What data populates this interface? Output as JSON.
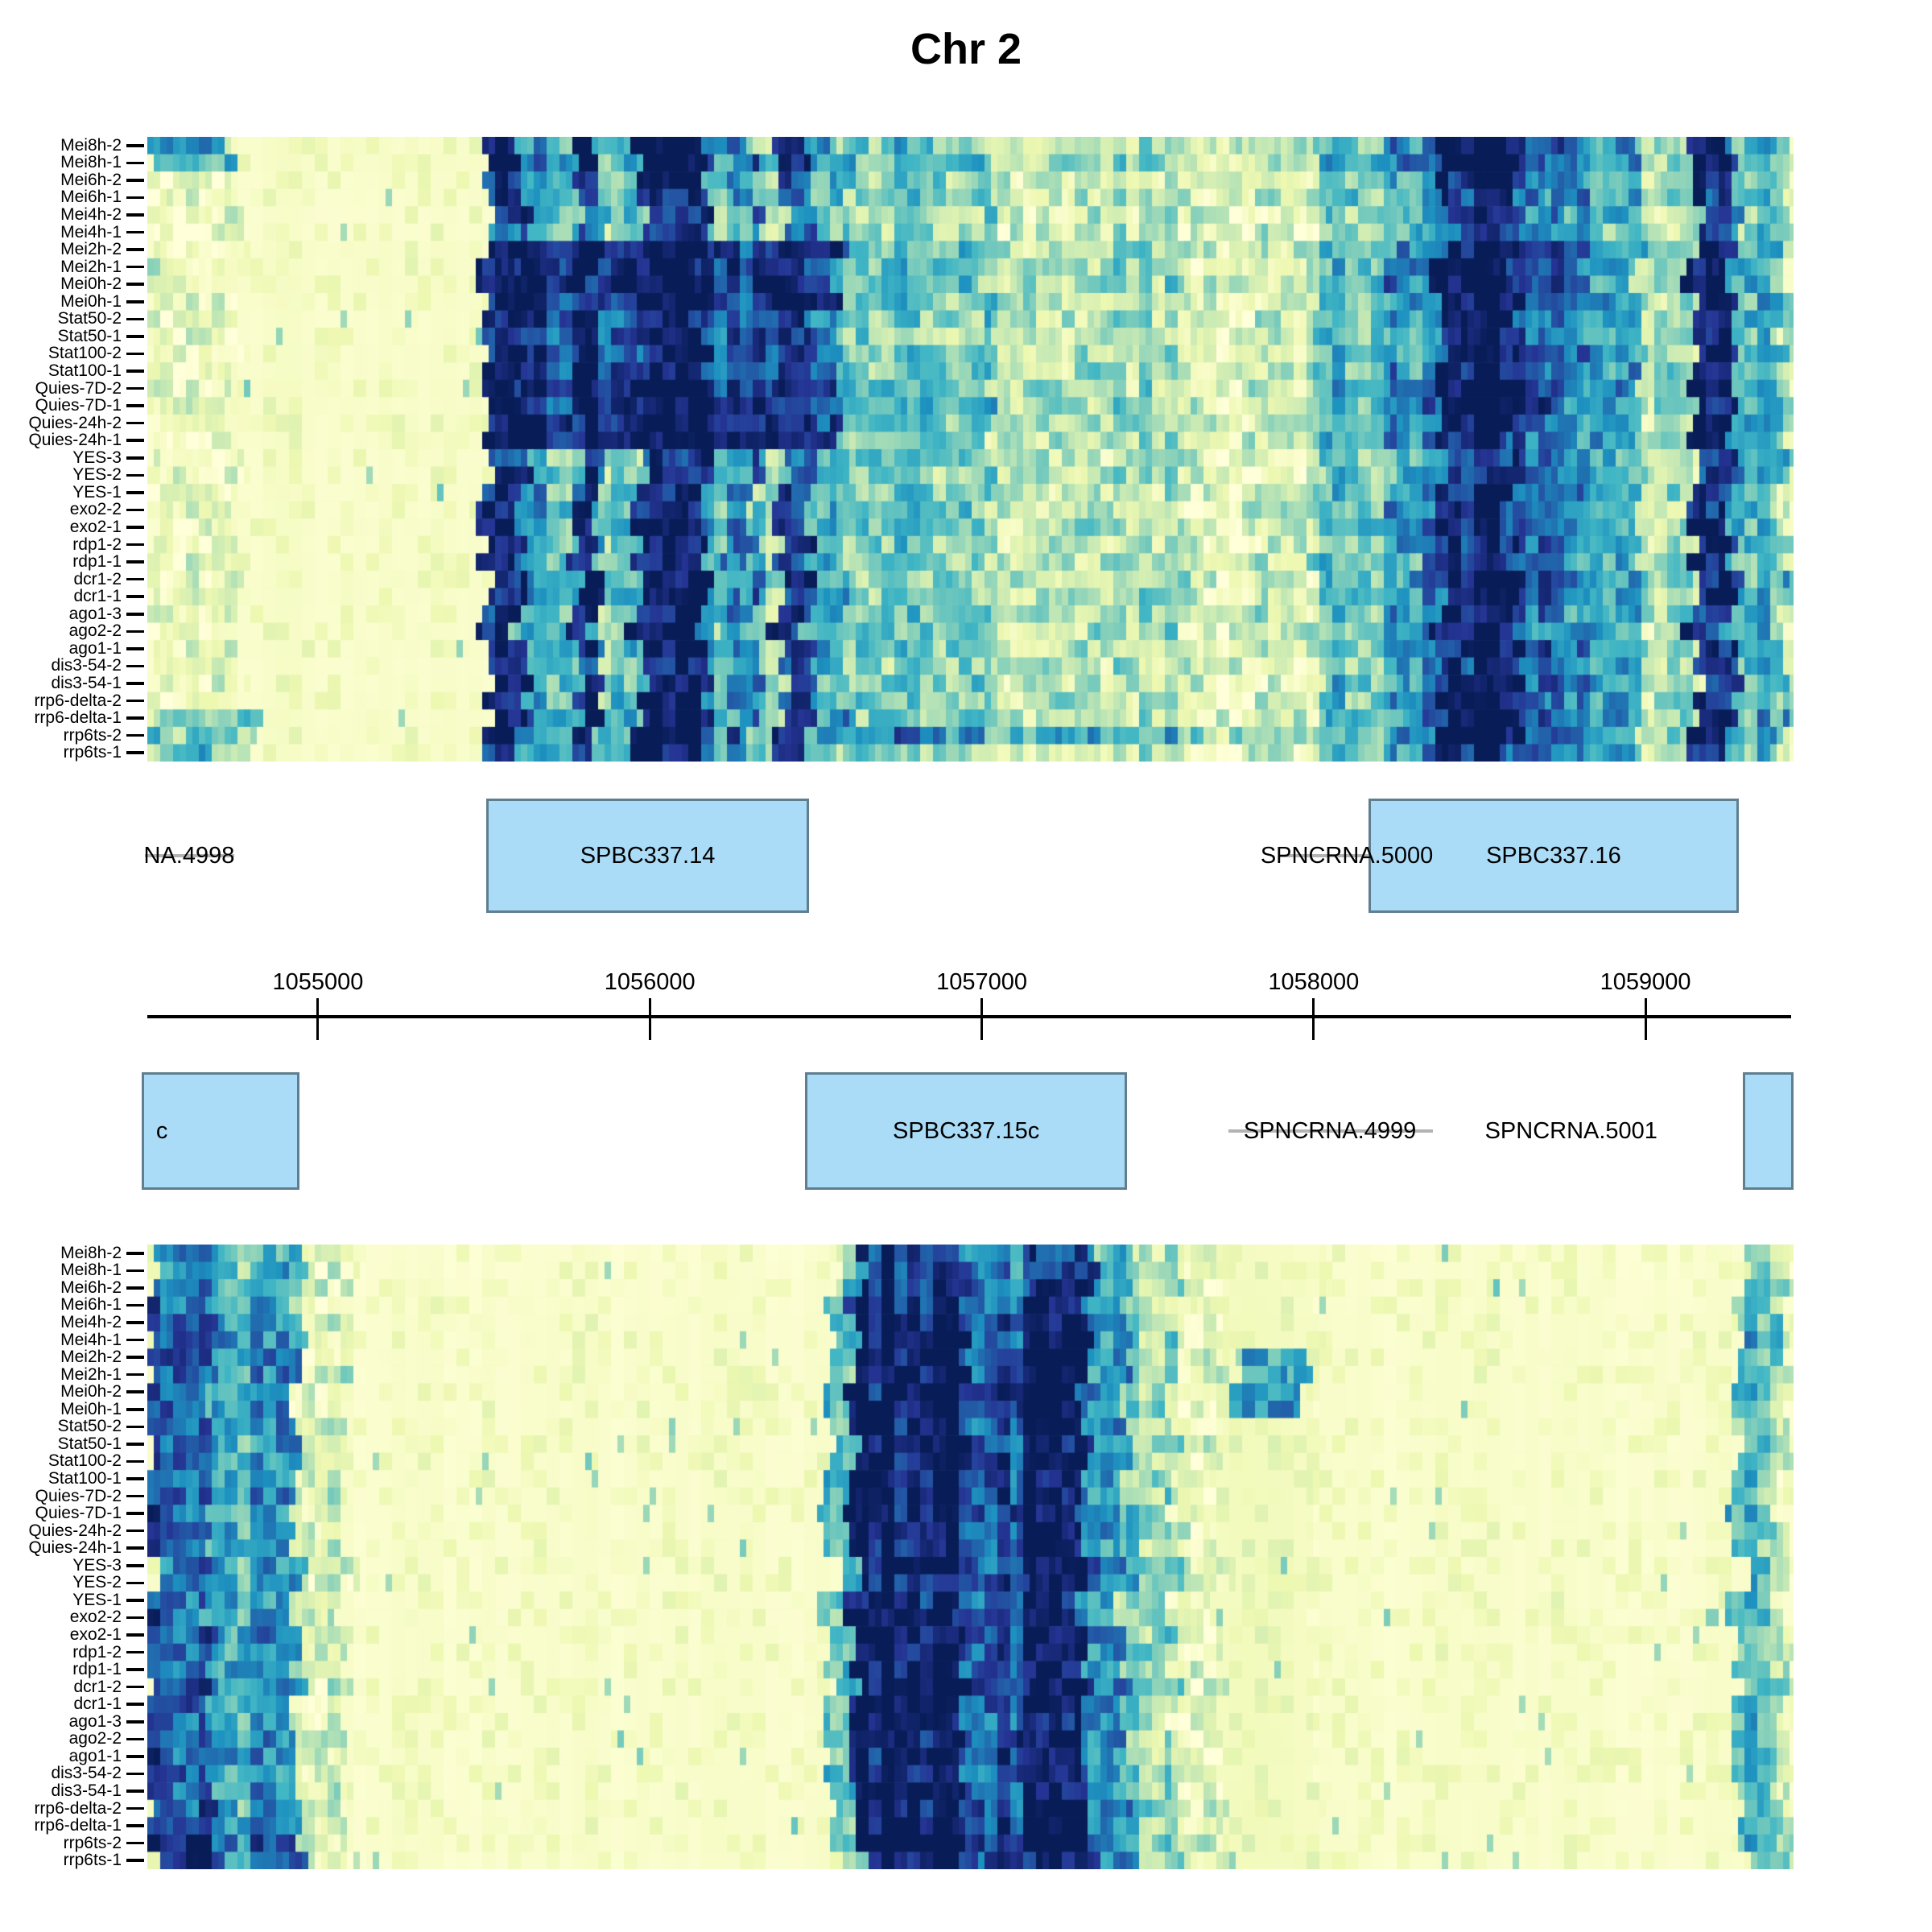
{
  "title": "Chr 2",
  "samples": [
    "Mei8h-2",
    "Mei8h-1",
    "Mei6h-2",
    "Mei6h-1",
    "Mei4h-2",
    "Mei4h-1",
    "Mei2h-2",
    "Mei2h-1",
    "Mei0h-2",
    "Mei0h-1",
    "Stat50-2",
    "Stat50-1",
    "Stat100-2",
    "Stat100-1",
    "Quies-7D-2",
    "Quies-7D-1",
    "Quies-24h-2",
    "Quies-24h-1",
    "YES-3",
    "YES-2",
    "YES-1",
    "exo2-2",
    "exo2-1",
    "rdp1-2",
    "rdp1-1",
    "dcr1-2",
    "dcr1-1",
    "ago1-3",
    "ago2-2",
    "ago1-1",
    "dis3-54-2",
    "dis3-54-1",
    "rrp6-delta-2",
    "rrp6-delta-1",
    "rrp6ts-2",
    "rrp6ts-1"
  ],
  "axis": {
    "domain": [
      1054486,
      1059446
    ],
    "tick_values": [
      1055000,
      1056000,
      1057000,
      1058000,
      1059000
    ],
    "tick_labels": [
      "1055000",
      "1056000",
      "1057000",
      "1058000",
      "1059000"
    ]
  },
  "colors": {
    "gene_box_fill": "#abdcf7",
    "gene_box_border": "#5f7e90",
    "gene_line": "#b3b3b3",
    "axis_color": "#000000",
    "heatmap_palette": [
      "#ffffd9",
      "#edf8b1",
      "#c7e9b4",
      "#7fcdbb",
      "#41b6c4",
      "#1d91c0",
      "#225ea8",
      "#253494",
      "#081d58"
    ]
  },
  "gene_tracks": {
    "top": [
      {
        "label": "NA.4998",
        "glyph": "line",
        "start": 1054479,
        "end": 1054748,
        "label_center": 1054612,
        "strikethrough": true
      },
      {
        "label": "SPBC337.14",
        "glyph": "box",
        "start": 1055507,
        "end": 1056480
      },
      {
        "label": "SPNCRNA.5000",
        "glyph": "line",
        "start": 1057898,
        "end": 1058165,
        "label_center": 1058100,
        "strikethrough": true
      },
      {
        "label": "SPBC337.16",
        "glyph": "box",
        "start": 1058165,
        "end": 1059281
      }
    ],
    "bottom": [
      {
        "label": "c",
        "glyph": "box",
        "start": 1054470,
        "end": 1054944,
        "label_center": 1054530,
        "clipped_left": true
      },
      {
        "label": "SPBC337.15c",
        "glyph": "box",
        "start": 1056468,
        "end": 1057438
      },
      {
        "label": "SPNCRNA.4999",
        "glyph": "line",
        "start": 1057743,
        "end": 1058359,
        "label_center": 1058049,
        "strikethrough": true
      },
      {
        "label": "SPNCRNA.5001",
        "glyph": "label",
        "label_center": 1058776,
        "strikethrough": false
      },
      {
        "label": "",
        "glyph": "box",
        "start": 1059293,
        "end": 1059446,
        "clipped_right": true
      }
    ]
  },
  "chart_data": [
    {
      "type": "heatmap",
      "panel": "upper",
      "x_domain": [
        1054486,
        1059446
      ],
      "value_scale": "0 = no coverage (pale yellow) to 1 = max coverage (dark navy), YlGnBu palette",
      "segments": [
        [
          1054486,
          1054750,
          0.13
        ],
        [
          1054750,
          1055500,
          0.05
        ],
        [
          1055500,
          1055610,
          0.95
        ],
        [
          1055610,
          1055775,
          0.55
        ],
        [
          1055775,
          1055840,
          0.95
        ],
        [
          1055840,
          1055960,
          0.45
        ],
        [
          1055960,
          1056165,
          0.97
        ],
        [
          1056165,
          1056240,
          0.5
        ],
        [
          1056240,
          1056310,
          0.72
        ],
        [
          1056310,
          1056385,
          0.35
        ],
        [
          1056385,
          1056480,
          0.95
        ],
        [
          1056480,
          1056575,
          0.6
        ],
        [
          1056575,
          1057025,
          0.42
        ],
        [
          1057025,
          1057240,
          0.25
        ],
        [
          1057240,
          1057630,
          0.3
        ],
        [
          1057630,
          1057820,
          0.15
        ],
        [
          1057820,
          1058005,
          0.25
        ],
        [
          1058005,
          1058235,
          0.45
        ],
        [
          1058235,
          1058380,
          0.62
        ],
        [
          1058380,
          1058600,
          1.0
        ],
        [
          1058600,
          1058695,
          0.8
        ],
        [
          1058695,
          1058815,
          0.62
        ],
        [
          1058815,
          1058985,
          0.5
        ],
        [
          1058985,
          1059140,
          0.28
        ],
        [
          1059140,
          1059260,
          0.95
        ],
        [
          1059260,
          1059405,
          0.5
        ],
        [
          1059405,
          1059446,
          0.25
        ]
      ],
      "row_weights": [
        1.05,
        1.1,
        0.92,
        0.92,
        0.85,
        0.8,
        1.1,
        1.05,
        1.1,
        1.05,
        0.95,
        0.95,
        1.0,
        1.0,
        1.1,
        1.05,
        1.05,
        1.0,
        0.9,
        0.9,
        0.92,
        0.95,
        1.0,
        0.95,
        0.95,
        1.0,
        1.0,
        0.95,
        0.95,
        1.0,
        0.9,
        0.95,
        1.0,
        1.05,
        1.1,
        0.95
      ],
      "patches": [
        {
          "rows": [
            0,
            1
          ],
          "range": [
            1054500,
            1054740
          ],
          "add": 0.38
        },
        {
          "rows": [
            6,
            9
          ],
          "range": [
            1055500,
            1056570
          ],
          "min": 0.9
        },
        {
          "rows": [
            10,
            13
          ],
          "range": [
            1055500,
            1056570
          ],
          "min": 0.78
        },
        {
          "rows": [
            14,
            17
          ],
          "range": [
            1055500,
            1056570
          ],
          "min": 0.9
        },
        {
          "rows": [
            33,
            35
          ],
          "range": [
            1054486,
            1054800
          ],
          "add": 0.28
        },
        {
          "rows": [
            34,
            34
          ],
          "range": [
            1056575,
            1057820
          ],
          "add": 0.15
        }
      ]
    },
    {
      "type": "heatmap",
      "panel": "lower",
      "x_domain": [
        1054486,
        1059446
      ],
      "value_scale": "0 = no coverage (pale yellow) to 1 = max coverage (dark navy), YlGnBu palette",
      "segments": [
        [
          1054486,
          1054685,
          0.78
        ],
        [
          1054685,
          1054780,
          0.55
        ],
        [
          1054780,
          1054940,
          0.6
        ],
        [
          1054940,
          1055090,
          0.18
        ],
        [
          1055090,
          1056540,
          0.04
        ],
        [
          1056540,
          1056615,
          0.45
        ],
        [
          1056615,
          1056950,
          1.0
        ],
        [
          1056950,
          1057120,
          0.82
        ],
        [
          1057120,
          1057315,
          1.0
        ],
        [
          1057315,
          1057435,
          0.6
        ],
        [
          1057435,
          1057580,
          0.35
        ],
        [
          1057580,
          1057725,
          0.15
        ],
        [
          1057725,
          1058015,
          0.08
        ],
        [
          1058015,
          1059275,
          0.04
        ],
        [
          1059275,
          1059405,
          0.45
        ],
        [
          1059405,
          1059446,
          0.2
        ]
      ],
      "row_weights": [
        0.78,
        0.82,
        0.88,
        0.9,
        1.0,
        1.0,
        1.02,
        1.0,
        1.02,
        1.0,
        0.98,
        0.98,
        1.0,
        1.0,
        1.02,
        1.0,
        1.0,
        0.98,
        0.95,
        0.95,
        0.95,
        1.0,
        1.0,
        0.98,
        0.98,
        1.0,
        1.0,
        0.98,
        0.98,
        1.0,
        0.95,
        0.98,
        1.02,
        1.05,
        1.1,
        1.0
      ],
      "patches": [
        {
          "rows": [
            6,
            9
          ],
          "range": [
            1057770,
            1057980
          ],
          "add": 0.42
        },
        {
          "rows": [
            34,
            35
          ],
          "range": [
            1054486,
            1054940
          ],
          "add": 0.12
        }
      ]
    }
  ],
  "layout_note_values": {
    "heatmap_rows": 36
  }
}
